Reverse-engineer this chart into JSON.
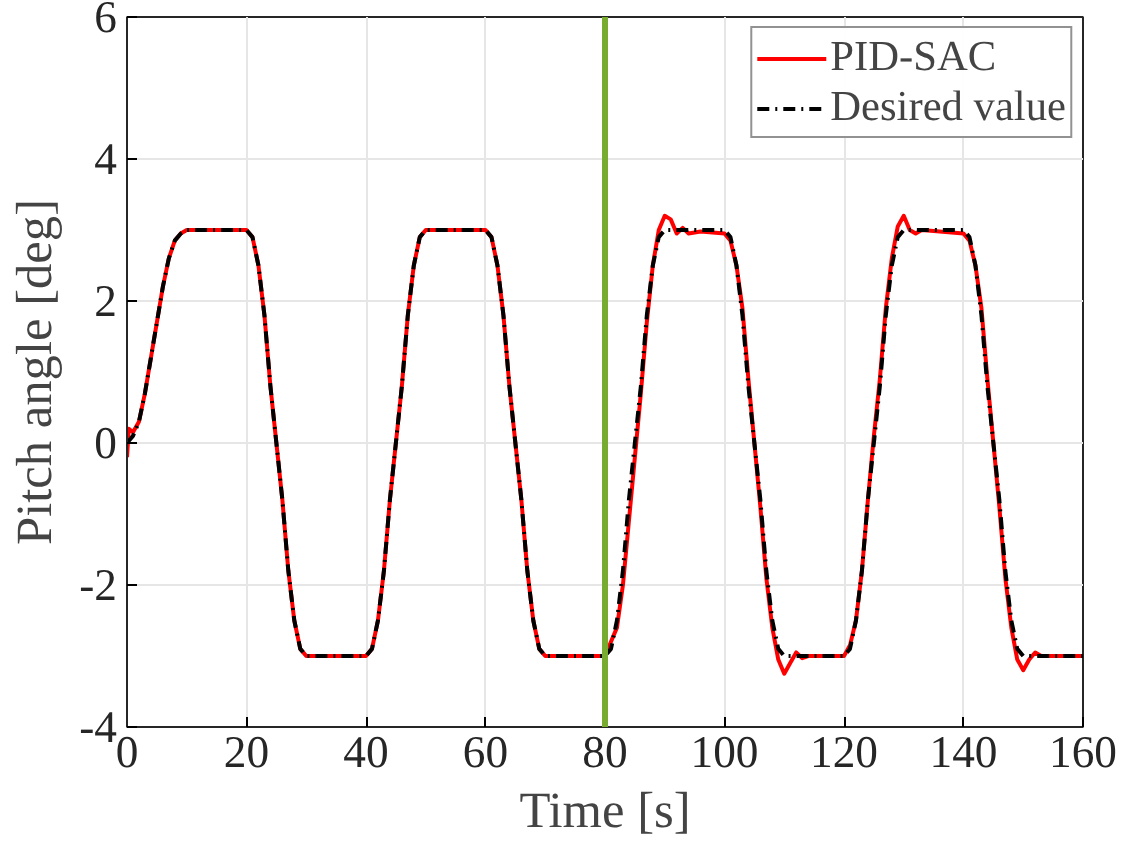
{
  "chart_data": {
    "type": "line",
    "xlabel": "Time [s]",
    "ylabel": "Pitch angle [deg]",
    "xlim": [
      0,
      160
    ],
    "ylim": [
      -4,
      6
    ],
    "xticks": [
      0,
      20,
      40,
      60,
      80,
      100,
      120,
      140,
      160
    ],
    "yticks": [
      -4,
      -2,
      0,
      2,
      4,
      6
    ],
    "grid": true,
    "legend": "top right",
    "ref_lines": [
      {
        "axis": "x",
        "value": 80,
        "color": "#77ac30"
      }
    ],
    "series": [
      {
        "name": "PID-SAC",
        "color": "#ff0000",
        "line_style": "solid",
        "x": [
          0,
          0.3,
          1,
          2,
          3,
          4,
          5,
          6,
          7,
          8,
          9,
          10,
          20,
          21,
          22,
          23,
          24,
          25,
          26,
          27,
          28,
          29,
          30,
          40,
          41,
          42,
          43,
          44,
          45,
          46,
          47,
          48,
          49,
          50,
          60,
          61,
          62,
          63,
          64,
          65,
          66,
          67,
          68,
          69,
          70,
          80,
          81,
          82,
          83,
          84,
          85,
          86,
          87,
          88,
          89,
          90,
          91,
          92,
          93,
          94,
          96,
          100,
          101,
          102,
          103,
          104,
          105,
          106,
          107,
          108,
          109,
          110,
          111,
          112,
          113,
          114,
          120,
          121,
          122,
          123,
          124,
          125,
          126,
          127,
          128,
          129,
          130,
          131,
          132,
          133,
          140,
          141,
          142,
          143,
          144,
          145,
          146,
          147,
          148,
          149,
          150,
          151,
          152,
          153,
          160
        ],
        "values": [
          -0.2,
          0.2,
          0.15,
          0.3,
          0.7,
          1.2,
          1.7,
          2.2,
          2.6,
          2.85,
          2.95,
          3,
          3,
          2.9,
          2.5,
          1.8,
          0.8,
          0,
          -0.8,
          -1.8,
          -2.5,
          -2.9,
          -3,
          -3,
          -2.9,
          -2.5,
          -1.8,
          -0.8,
          0,
          0.8,
          1.8,
          2.5,
          2.9,
          3,
          3,
          2.9,
          2.5,
          1.8,
          0.8,
          0,
          -0.8,
          -1.8,
          -2.5,
          -2.9,
          -3,
          -3,
          -2.8,
          -2.6,
          -2.0,
          -1.1,
          -0.2,
          0.7,
          1.7,
          2.5,
          3.0,
          3.2,
          3.15,
          2.95,
          3.03,
          2.95,
          2.98,
          2.95,
          2.85,
          2.5,
          1.9,
          0.9,
          0,
          -0.9,
          -1.9,
          -2.6,
          -3.05,
          -3.25,
          -3.1,
          -2.95,
          -3.03,
          -3.0,
          -3,
          -2.85,
          -2.5,
          -1.8,
          -0.8,
          0.1,
          0.9,
          1.9,
          2.6,
          3.05,
          3.2,
          3.0,
          2.95,
          3.0,
          2.95,
          2.85,
          2.5,
          1.9,
          0.9,
          0,
          -0.9,
          -1.9,
          -2.6,
          -3.05,
          -3.2,
          -3.05,
          -2.95,
          -3.0,
          -3
        ]
      },
      {
        "name": "Desired value",
        "color": "#000000",
        "line_style": "dashed",
        "x": [
          0,
          1,
          2,
          3,
          4,
          5,
          6,
          7,
          8,
          9,
          10,
          20,
          21,
          22,
          23,
          24,
          25,
          26,
          27,
          28,
          29,
          30,
          40,
          41,
          42,
          43,
          44,
          45,
          46,
          47,
          48,
          49,
          50,
          60,
          61,
          62,
          63,
          64,
          65,
          66,
          67,
          68,
          69,
          70,
          80,
          81,
          82,
          83,
          84,
          85,
          86,
          87,
          88,
          89,
          90,
          100,
          101,
          102,
          103,
          104,
          105,
          106,
          107,
          108,
          109,
          110,
          120,
          121,
          122,
          123,
          124,
          125,
          126,
          127,
          128,
          129,
          130,
          140,
          141,
          142,
          143,
          144,
          145,
          146,
          147,
          148,
          149,
          150,
          160
        ],
        "values": [
          0,
          0.1,
          0.3,
          0.7,
          1.2,
          1.7,
          2.2,
          2.6,
          2.85,
          2.95,
          3,
          3,
          2.9,
          2.5,
          1.8,
          0.8,
          0,
          -0.8,
          -1.8,
          -2.5,
          -2.9,
          -3,
          -3,
          -2.9,
          -2.5,
          -1.8,
          -0.8,
          0,
          0.8,
          1.8,
          2.5,
          2.9,
          3,
          3,
          2.9,
          2.5,
          1.8,
          0.8,
          0,
          -0.8,
          -1.8,
          -2.5,
          -2.9,
          -3,
          -3,
          -2.9,
          -2.5,
          -1.8,
          -0.8,
          0,
          0.8,
          1.8,
          2.5,
          2.9,
          3,
          3,
          2.9,
          2.5,
          1.8,
          0.8,
          0,
          -0.8,
          -1.8,
          -2.5,
          -2.9,
          -3,
          -3,
          -2.9,
          -2.5,
          -1.8,
          -0.8,
          0,
          0.8,
          1.8,
          2.5,
          2.9,
          3,
          3,
          2.9,
          2.5,
          1.8,
          0.8,
          0,
          -0.8,
          -1.8,
          -2.5,
          -2.9,
          -3,
          -3
        ]
      }
    ]
  }
}
